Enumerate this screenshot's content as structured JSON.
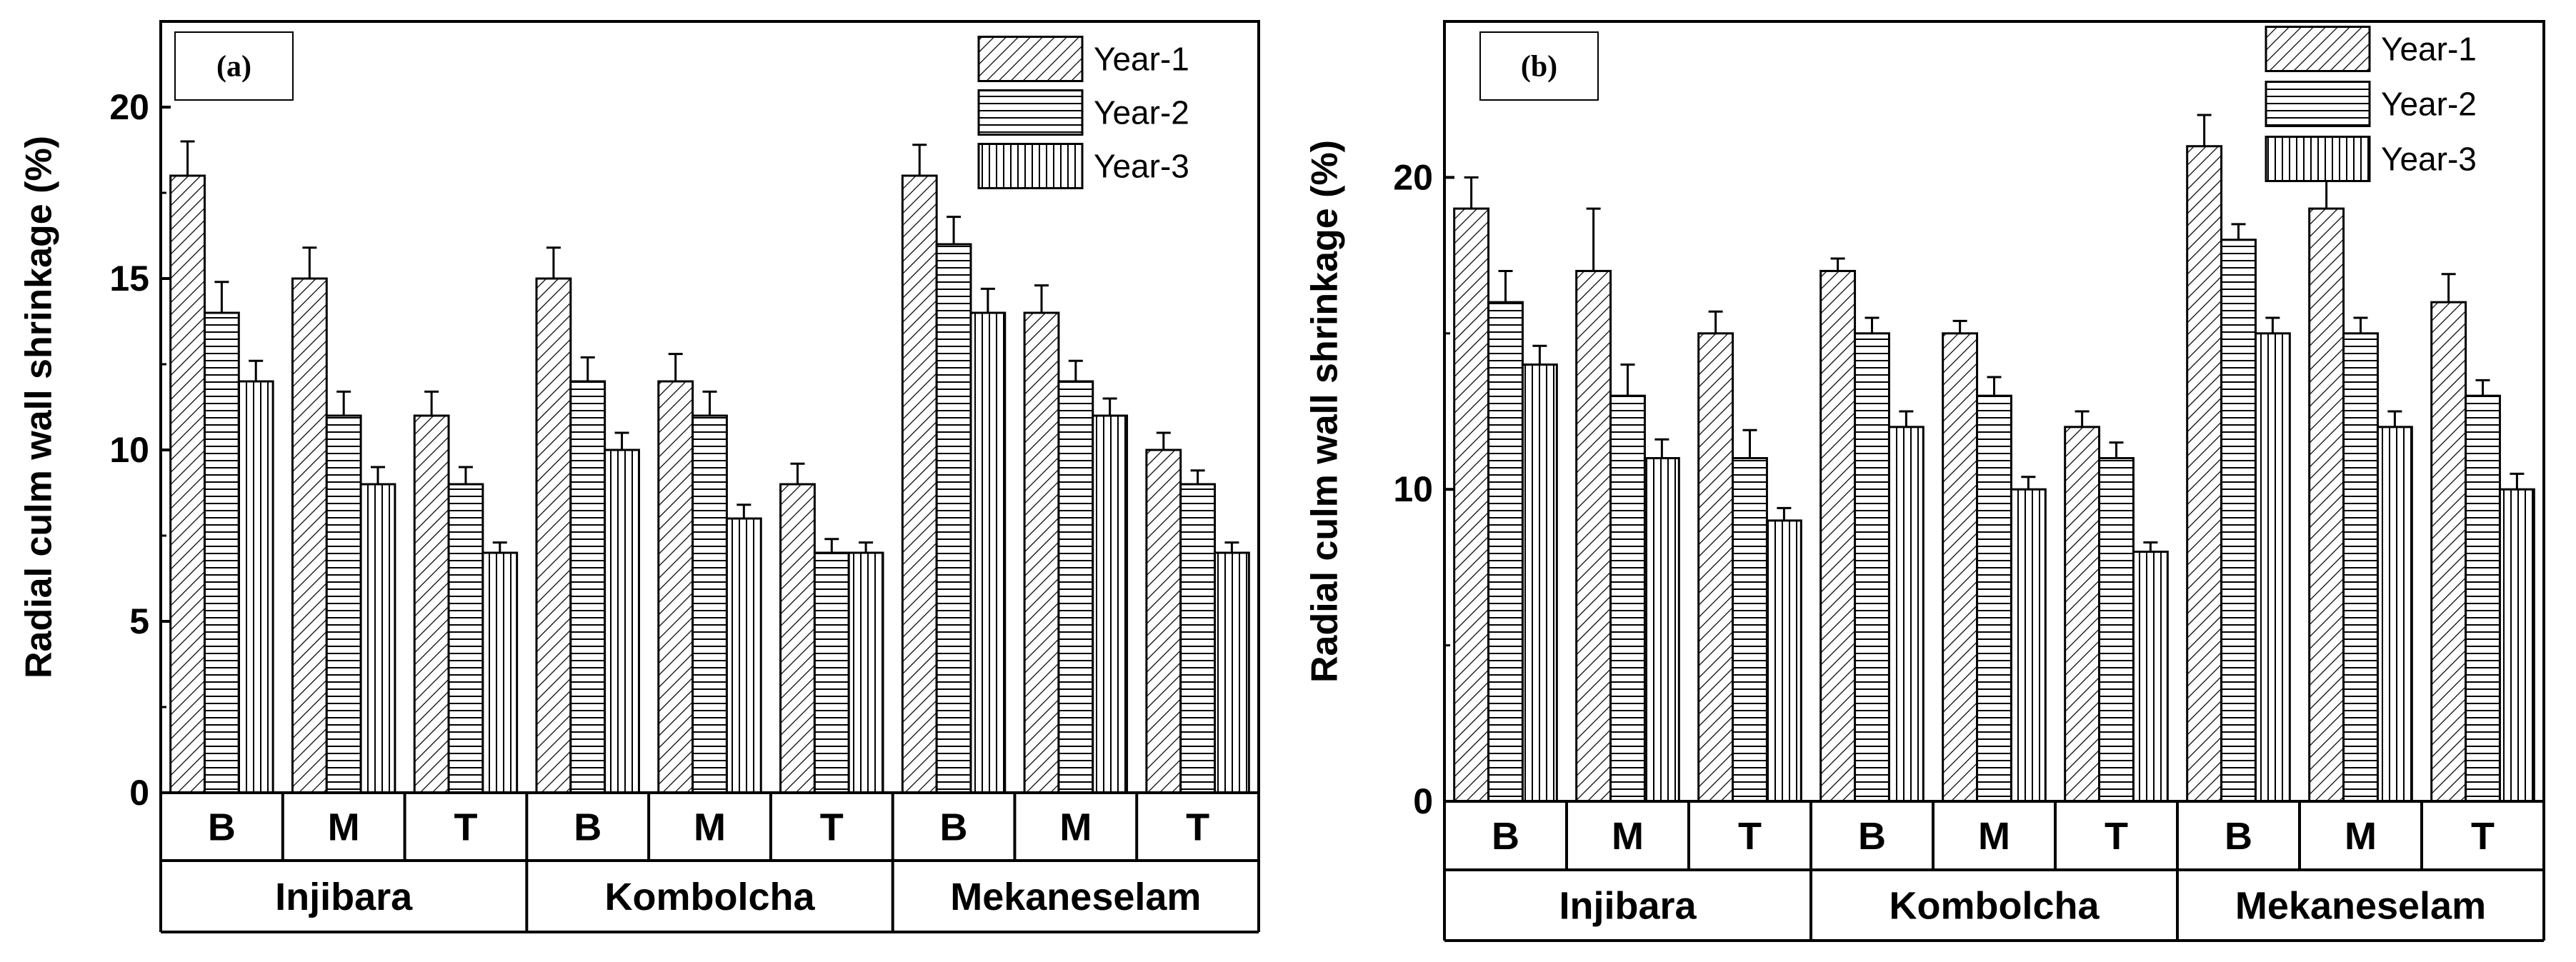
{
  "chart_data": [
    {
      "type": "bar",
      "panel_label": "(a)",
      "ylabel": "Radial culm wall shrinkage (%)",
      "ylim": [
        0,
        22.5
      ],
      "yticks": [
        0,
        5,
        10,
        15,
        20
      ],
      "categories": [
        "B",
        "M",
        "T",
        "B",
        "M",
        "T",
        "B",
        "M",
        "T"
      ],
      "groups": [
        "Injibara",
        "Kombolcha",
        "Mekaneselam"
      ],
      "series": [
        {
          "name": "Year-1",
          "values": [
            18,
            15,
            11,
            15,
            12,
            9,
            18,
            14,
            10
          ],
          "errors": [
            1.0,
            0.9,
            0.7,
            0.9,
            0.8,
            0.6,
            0.9,
            0.8,
            0.5
          ]
        },
        {
          "name": "Year-2",
          "values": [
            14,
            11,
            9,
            12,
            11,
            7,
            16,
            12,
            9
          ],
          "errors": [
            0.9,
            0.7,
            0.5,
            0.7,
            0.7,
            0.4,
            0.8,
            0.6,
            0.4
          ]
        },
        {
          "name": "Year-3",
          "values": [
            12,
            9,
            7,
            10,
            8,
            7,
            14,
            11,
            7
          ],
          "errors": [
            0.6,
            0.5,
            0.3,
            0.5,
            0.4,
            0.3,
            0.7,
            0.5,
            0.3
          ]
        }
      ],
      "legend_position": "top-right"
    },
    {
      "type": "bar",
      "panel_label": "(b)",
      "ylabel": "Radial culm wall shrinkage (%)",
      "ylim": [
        0,
        25
      ],
      "yticks": [
        0,
        10,
        20
      ],
      "categories": [
        "B",
        "M",
        "T",
        "B",
        "M",
        "T",
        "B",
        "M",
        "T"
      ],
      "groups": [
        "Injibara",
        "Kombolcha",
        "Mekaneselam"
      ],
      "series": [
        {
          "name": "Year-1",
          "values": [
            19,
            17,
            15,
            17,
            15,
            12,
            21,
            19,
            16
          ],
          "errors": [
            1.0,
            2.0,
            0.7,
            0.4,
            0.4,
            0.5,
            1.0,
            1.0,
            0.9
          ]
        },
        {
          "name": "Year-2",
          "values": [
            16,
            13,
            11,
            15,
            13,
            11,
            18,
            15,
            13
          ],
          "errors": [
            1.0,
            1.0,
            0.9,
            0.5,
            0.6,
            0.5,
            0.5,
            0.5,
            0.5
          ]
        },
        {
          "name": "Year-3",
          "values": [
            14,
            11,
            9,
            12,
            10,
            8,
            15,
            12,
            10
          ],
          "errors": [
            0.6,
            0.6,
            0.4,
            0.5,
            0.4,
            0.3,
            0.5,
            0.5,
            0.5
          ]
        }
      ],
      "legend_position": "top-right"
    }
  ]
}
